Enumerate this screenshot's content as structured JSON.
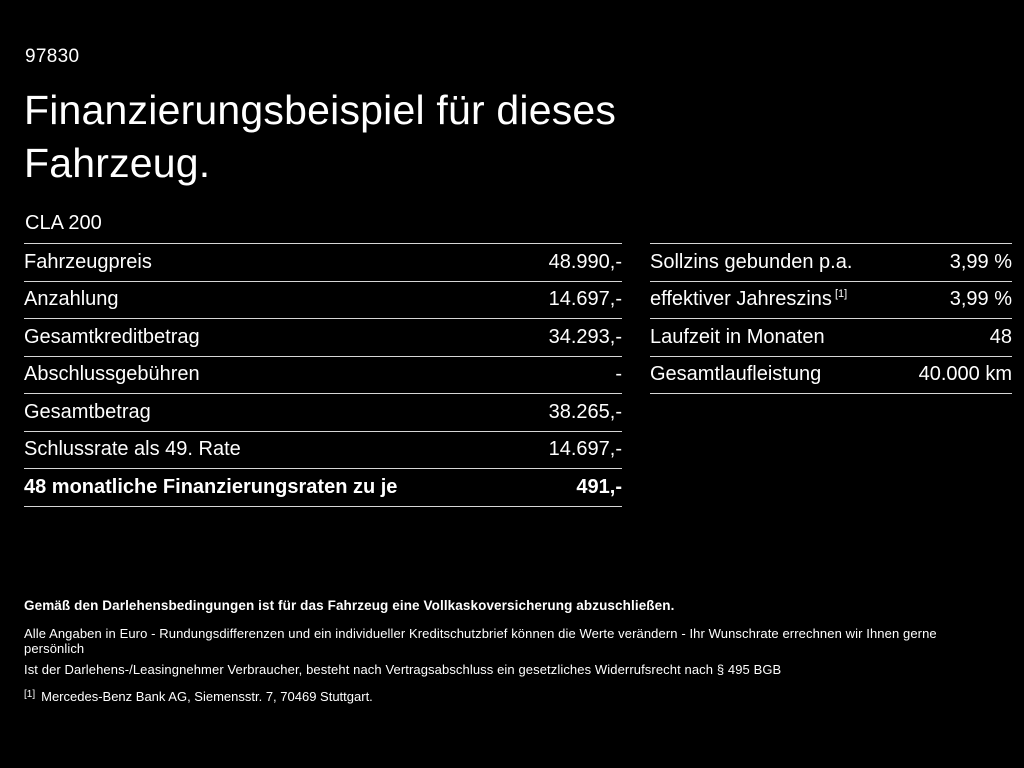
{
  "page": {
    "code": "97830",
    "title_line1": "Finanzierungsbeispiel für dieses",
    "title_line2": "Fahrzeug.",
    "model": "CLA 200",
    "background_color": "#000000",
    "text_color": "#ffffff",
    "divider_color": "#d6d6d6"
  },
  "left_table": {
    "rows": [
      {
        "label": "Fahrzeugpreis",
        "value": "48.990,-"
      },
      {
        "label": "Anzahlung",
        "value": "14.697,-"
      },
      {
        "label": "Gesamtkreditbetrag",
        "value": "34.293,-"
      },
      {
        "label": "Abschlussgebühren",
        "value": "-"
      },
      {
        "label": "Gesamtbetrag",
        "value": "38.265,-"
      },
      {
        "label": "Schlussrate als 49. Rate",
        "value": "14.697,-"
      },
      {
        "label": "48 monatliche Finanzierungsraten zu je",
        "value": "491,-"
      }
    ]
  },
  "right_table": {
    "rows": [
      {
        "label": "Sollzins gebunden p.a.",
        "sup": "",
        "value": "3,99 %"
      },
      {
        "label": "effektiver Jahreszins",
        "sup": "[1]",
        "value": "3,99 %"
      },
      {
        "label": "Laufzeit in Monaten",
        "sup": "",
        "value": "48"
      },
      {
        "label": "Gesamtlaufleistung",
        "sup": "",
        "value": "40.000 km"
      }
    ]
  },
  "footnotes": {
    "insurance_bold": "Gemäß den Darlehensbedingungen ist für das Fahrzeug eine Vollkaskoversicherung abzuschließen.",
    "line2": "Alle Angaben in Euro - Rundungsdifferenzen und ein individueller Kreditschutzbrief können die Werte verändern - Ihr Wunschrate errechnen wir Ihnen gerne persönlich",
    "line3": "Ist der Darlehens-/Leasingnehmer Verbraucher, besteht nach Vertragsabschluss ein gesetzliches Widerrufsrecht nach § 495 BGB",
    "ref_marker": "[1]",
    "ref_text": "Mercedes-Benz Bank AG, Siemensstr. 7, 70469 Stuttgart."
  }
}
